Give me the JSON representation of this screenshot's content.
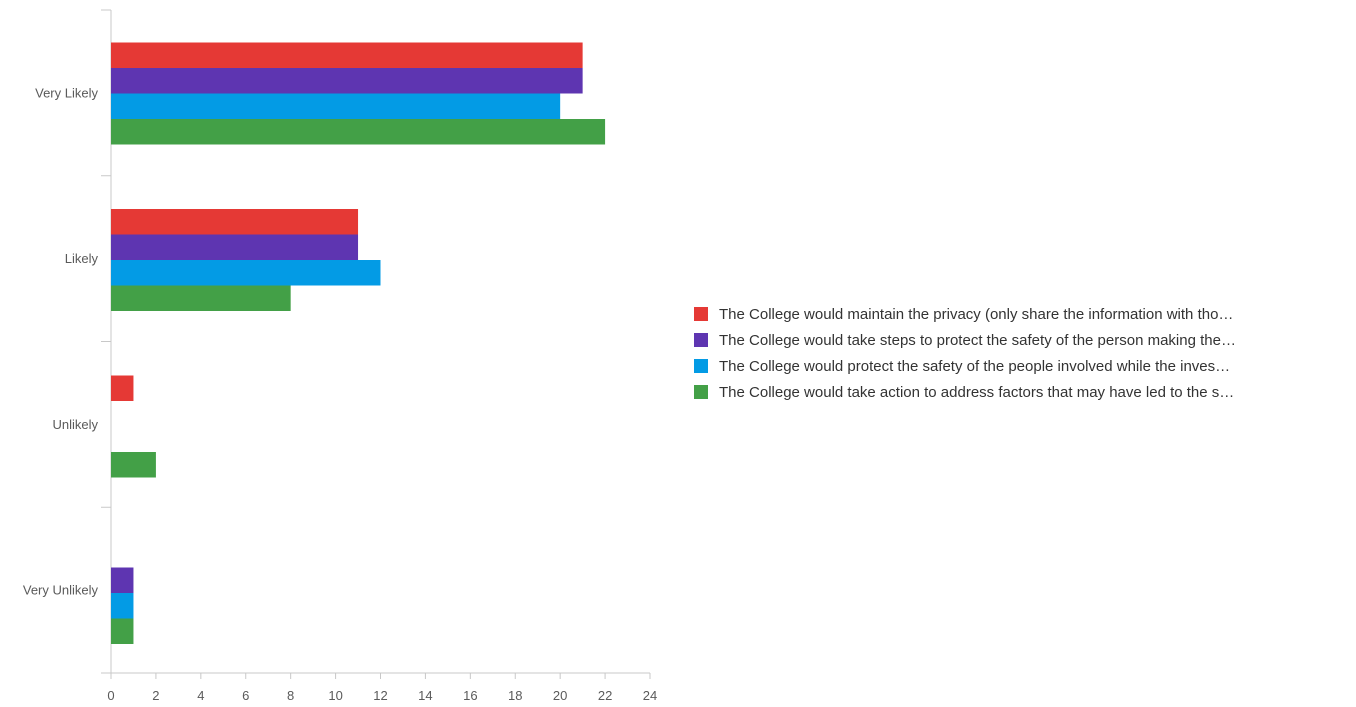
{
  "chart_data": {
    "type": "bar",
    "orientation": "horizontal",
    "categories": [
      "Very Likely",
      "Likely",
      "Unlikely",
      "Very Unlikely"
    ],
    "series": [
      {
        "name": "The College would maintain the privacy (only share the information with tho…",
        "color": "#e53935",
        "values": [
          21,
          11,
          1,
          0
        ]
      },
      {
        "name": "The College would take steps to protect the safety of the person making the…",
        "color": "#5e35b1",
        "values": [
          21,
          11,
          0,
          1
        ]
      },
      {
        "name": "The College would protect the safety of the people involved while the inves…",
        "color": "#039be5",
        "values": [
          20,
          12,
          0,
          1
        ]
      },
      {
        "name": "The College would take action to address factors that may have led to the s…",
        "color": "#43a047",
        "values": [
          22,
          8,
          2,
          1
        ]
      }
    ],
    "x_ticks": [
      "0",
      "2",
      "4",
      "6",
      "8",
      "10",
      "12",
      "14",
      "16",
      "18",
      "20",
      "22",
      "24"
    ],
    "xlim": [
      0,
      24
    ],
    "title": "",
    "xlabel": "",
    "ylabel": "",
    "grid": false,
    "legend_position": "right"
  }
}
